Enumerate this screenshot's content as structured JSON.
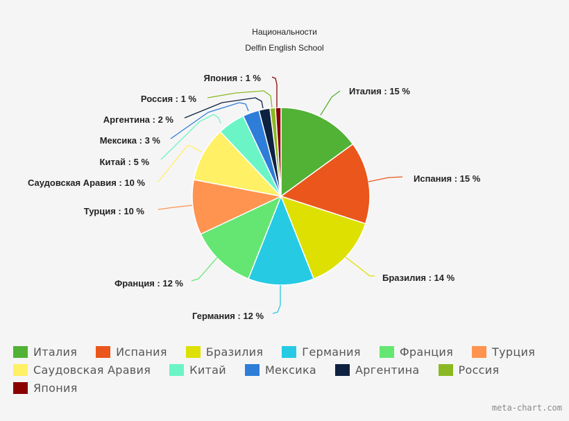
{
  "chart_data": {
    "type": "pie",
    "title": "Национальности",
    "subtitle": "Delfin English School",
    "label_format": "{name} : {value} %",
    "legend_position": "bottom",
    "categories": [
      "Италия",
      "Испания",
      "Бразилия",
      "Германия",
      "Франция",
      "Турция",
      "Саудовская Аравия",
      "Китай",
      "Мексика",
      "Аргентина",
      "Россия",
      "Япония"
    ],
    "values": [
      15,
      15,
      14,
      12,
      12,
      10,
      10,
      5,
      3,
      2,
      1,
      1
    ],
    "colors": [
      "#52b236",
      "#ea561c",
      "#dde000",
      "#26cae3",
      "#65e672",
      "#ff9350",
      "#fff066",
      "#6bf5c6",
      "#2e7dd8",
      "#0e2140",
      "#8ab823",
      "#8b0000"
    ],
    "labels": [
      "Италия : 15 %",
      "Испания : 15 %",
      "Бразилия : 14 %",
      "Германия : 12 %",
      "Франция : 12 %",
      "Турция : 10 %",
      "Саудовская Аравия : 10 %",
      "Китай : 5 %",
      "Мексика : 3 %",
      "Аргентина : 2 %",
      "Россия : 1 %",
      "Япония : 1 %"
    ]
  },
  "legend": {
    "rows": [
      [
        0,
        1,
        2,
        3,
        4,
        5
      ],
      [
        6,
        7,
        8,
        9,
        10
      ],
      [
        11
      ]
    ]
  },
  "credit": "meta-chart.com"
}
